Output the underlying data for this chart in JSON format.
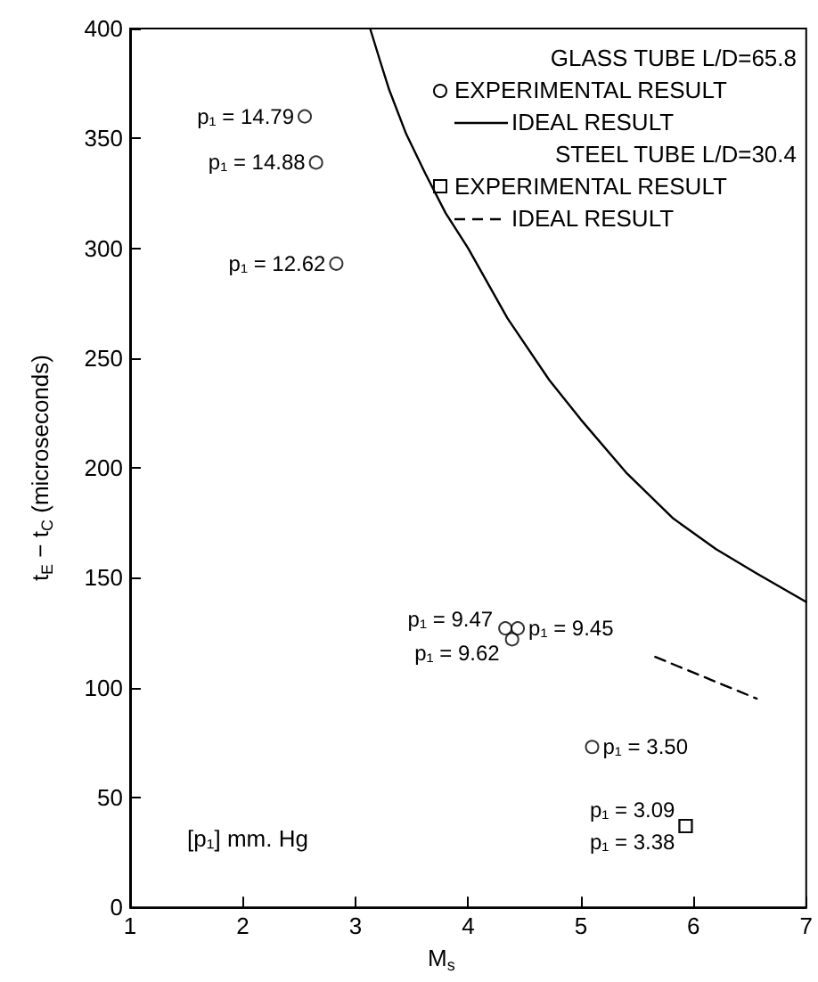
{
  "chart_data": {
    "type": "scatter",
    "xlabel": "M$_{s}$",
    "ylabel": "t$_{E}$ − t$_{C}$ (microseconds)",
    "xlim": [
      1,
      7
    ],
    "xticks": [
      1,
      2,
      3,
      4,
      5,
      6,
      7
    ],
    "ylim": [
      0,
      400
    ],
    "yticks": [
      0,
      50,
      100,
      150,
      200,
      250,
      300,
      350,
      400
    ],
    "grid": false,
    "legend": "top right",
    "annotations": [
      "GLASS TUBE L/D=65.8",
      "STEEL TUBE L/D=30.4",
      "[p₁] mm. Hg",
      {
        "text": "p₁ = 14.79",
        "x": 2.55,
        "y": 360
      },
      {
        "text": "p₁ = 14.88",
        "x": 2.65,
        "y": 339
      },
      {
        "text": "p₁ = 12.62",
        "x": 2.83,
        "y": 293
      },
      {
        "text": "p₁ = 9.47",
        "x": 4.33,
        "y": 127
      },
      {
        "text": "p₁ = 9.45",
        "x": 4.44,
        "y": 127
      },
      {
        "text": "p₁ = 9.62",
        "x": 4.39,
        "y": 122
      },
      {
        "text": "p₁ = 3.50",
        "x": 5.1,
        "y": 73
      },
      {
        "text": "p₁ = 3.09",
        "x": 5.93,
        "y": 37
      },
      {
        "text": "p₁ = 3.38",
        "x": 5.93,
        "y": 37
      }
    ],
    "series": [
      {
        "name": "EXPERIMENTAL RESULT",
        "marker": "circle",
        "color": "#000000",
        "x": [
          2.55,
          2.65,
          2.83,
          4.33,
          4.44,
          4.39,
          5.1
        ],
        "values": [
          360,
          339,
          293,
          127,
          127,
          122,
          73
        ]
      },
      {
        "name": "IDEAL RESULT",
        "type": "line",
        "line_style": "solid",
        "marker": "none",
        "color": "#000000",
        "x": [
          3.13,
          3.22,
          3.3,
          3.45,
          3.62,
          3.8,
          4.0,
          4.35,
          4.72,
          5.0,
          5.4,
          5.82,
          6.2,
          6.56,
          7.0
        ],
        "values": [
          400,
          385,
          372,
          352,
          334,
          316,
          300,
          268,
          240,
          222,
          198,
          177,
          163,
          152,
          139
        ]
      },
      {
        "name": "EXPERIMENTAL RESULT",
        "marker": "square",
        "color": "#000000",
        "x": [
          5.93,
          5.93
        ],
        "values": [
          37,
          37
        ]
      },
      {
        "name": "IDEAL RESULT",
        "type": "line",
        "line_style": "dashed",
        "marker": "none",
        "color": "#000000",
        "x": [
          5.66,
          6.56
        ],
        "values": [
          114,
          95
        ]
      }
    ]
  }
}
